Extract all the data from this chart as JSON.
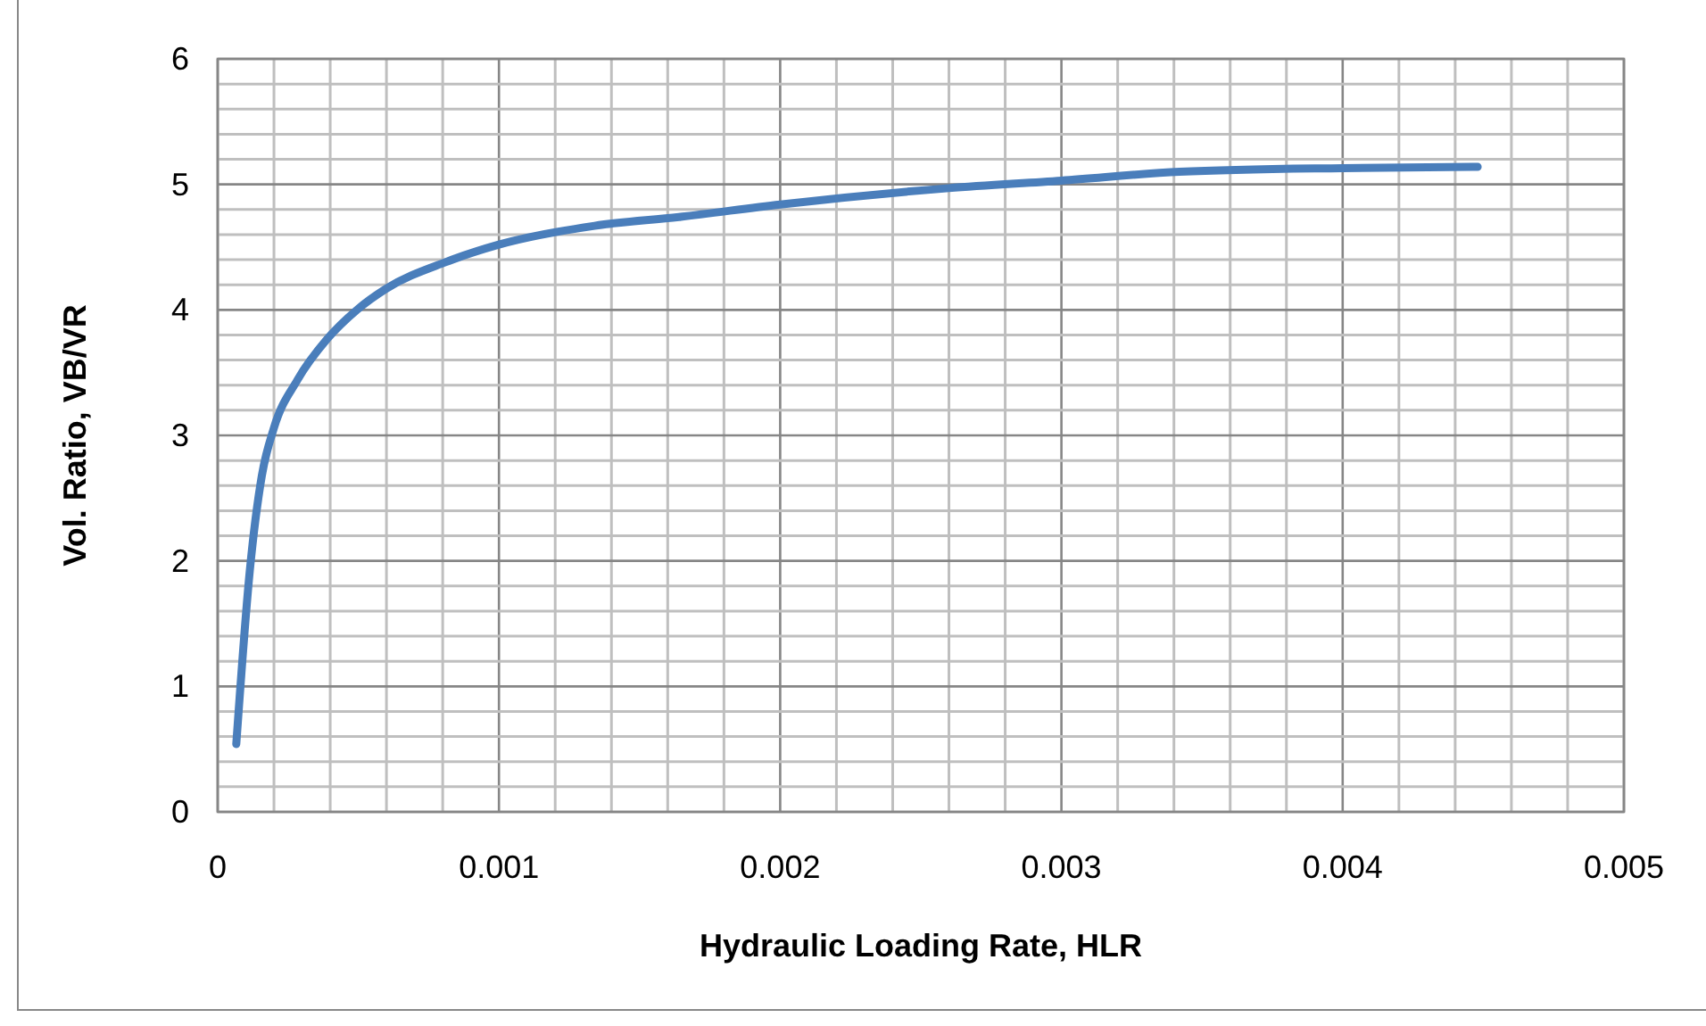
{
  "chart_data": {
    "type": "line",
    "xlabel": "Hydraulic Loading Rate, HLR",
    "ylabel": "Vol. Ratio, VB/VR",
    "x": [
      6.6e-05,
      0.000114,
      0.000157,
      0.0002,
      0.000283,
      0.00039,
      0.000495,
      0.0006,
      0.00081,
      0.001,
      0.00134,
      0.00164,
      0.002,
      0.0026,
      0.003,
      0.00342,
      0.004,
      0.00448
    ],
    "series": [
      {
        "color": "#4a7ebb",
        "values": [
          0.54,
          1.92,
          2.68,
          3.06,
          3.44,
          3.77,
          4.0,
          4.17,
          4.38,
          4.52,
          4.67,
          4.74,
          4.84,
          4.97,
          5.03,
          5.1,
          5.13,
          5.14
        ]
      }
    ],
    "xlim": [
      0,
      0.005
    ],
    "xticks": [
      0,
      {
        "value": 0.0002,
        "label": null
      },
      {
        "value": 0.0004,
        "label": null
      },
      {
        "value": 0.0006,
        "label": null
      },
      {
        "value": 0.0008,
        "label": null
      },
      0.001,
      {
        "value": 0.0012,
        "label": null
      },
      {
        "value": 0.0014,
        "label": null
      },
      {
        "value": 0.0016,
        "label": null
      },
      {
        "value": 0.0018,
        "label": null
      },
      0.002,
      {
        "value": 0.0022,
        "label": null
      },
      {
        "value": 0.0024,
        "label": null
      },
      {
        "value": 0.0026,
        "label": null
      },
      {
        "value": 0.0028,
        "label": null
      },
      0.003,
      {
        "value": 0.0032,
        "label": null
      },
      {
        "value": 0.0034,
        "label": null
      },
      {
        "value": 0.0036,
        "label": null
      },
      {
        "value": 0.0038,
        "label": null
      },
      0.004,
      {
        "value": 0.0042,
        "label": null
      },
      {
        "value": 0.0044,
        "label": null
      },
      {
        "value": 0.0046,
        "label": null
      },
      {
        "value": 0.0048,
        "label": null
      },
      0.005
    ],
    "ylim": [
      0,
      6
    ],
    "yticks": [
      0,
      {
        "value": 0.2,
        "label": null
      },
      {
        "value": 0.4,
        "label": null
      },
      {
        "value": 0.6,
        "label": null
      },
      {
        "value": 0.8,
        "label": null
      },
      1,
      {
        "value": 1.2,
        "label": null
      },
      {
        "value": 1.4,
        "label": null
      },
      {
        "value": 1.6,
        "label": null
      },
      {
        "value": 1.8,
        "label": null
      },
      2,
      {
        "value": 2.2,
        "label": null
      },
      {
        "value": 2.4,
        "label": null
      },
      {
        "value": 2.6,
        "label": null
      },
      {
        "value": 2.8,
        "label": null
      },
      3,
      {
        "value": 3.2,
        "label": null
      },
      {
        "value": 3.4,
        "label": null
      },
      {
        "value": 3.6,
        "label": null
      },
      {
        "value": 3.8,
        "label": null
      },
      4,
      {
        "value": 4.2,
        "label": null
      },
      {
        "value": 4.4,
        "label": null
      },
      {
        "value": 4.6,
        "label": null
      },
      {
        "value": 4.8,
        "label": null
      },
      5,
      {
        "value": 5.2,
        "label": null
      },
      {
        "value": 5.4,
        "label": null
      },
      {
        "value": 5.6,
        "label": null
      },
      {
        "value": 5.8,
        "label": null
      },
      6
    ],
    "grid": true,
    "marker": "none",
    "line_style": "solid"
  }
}
